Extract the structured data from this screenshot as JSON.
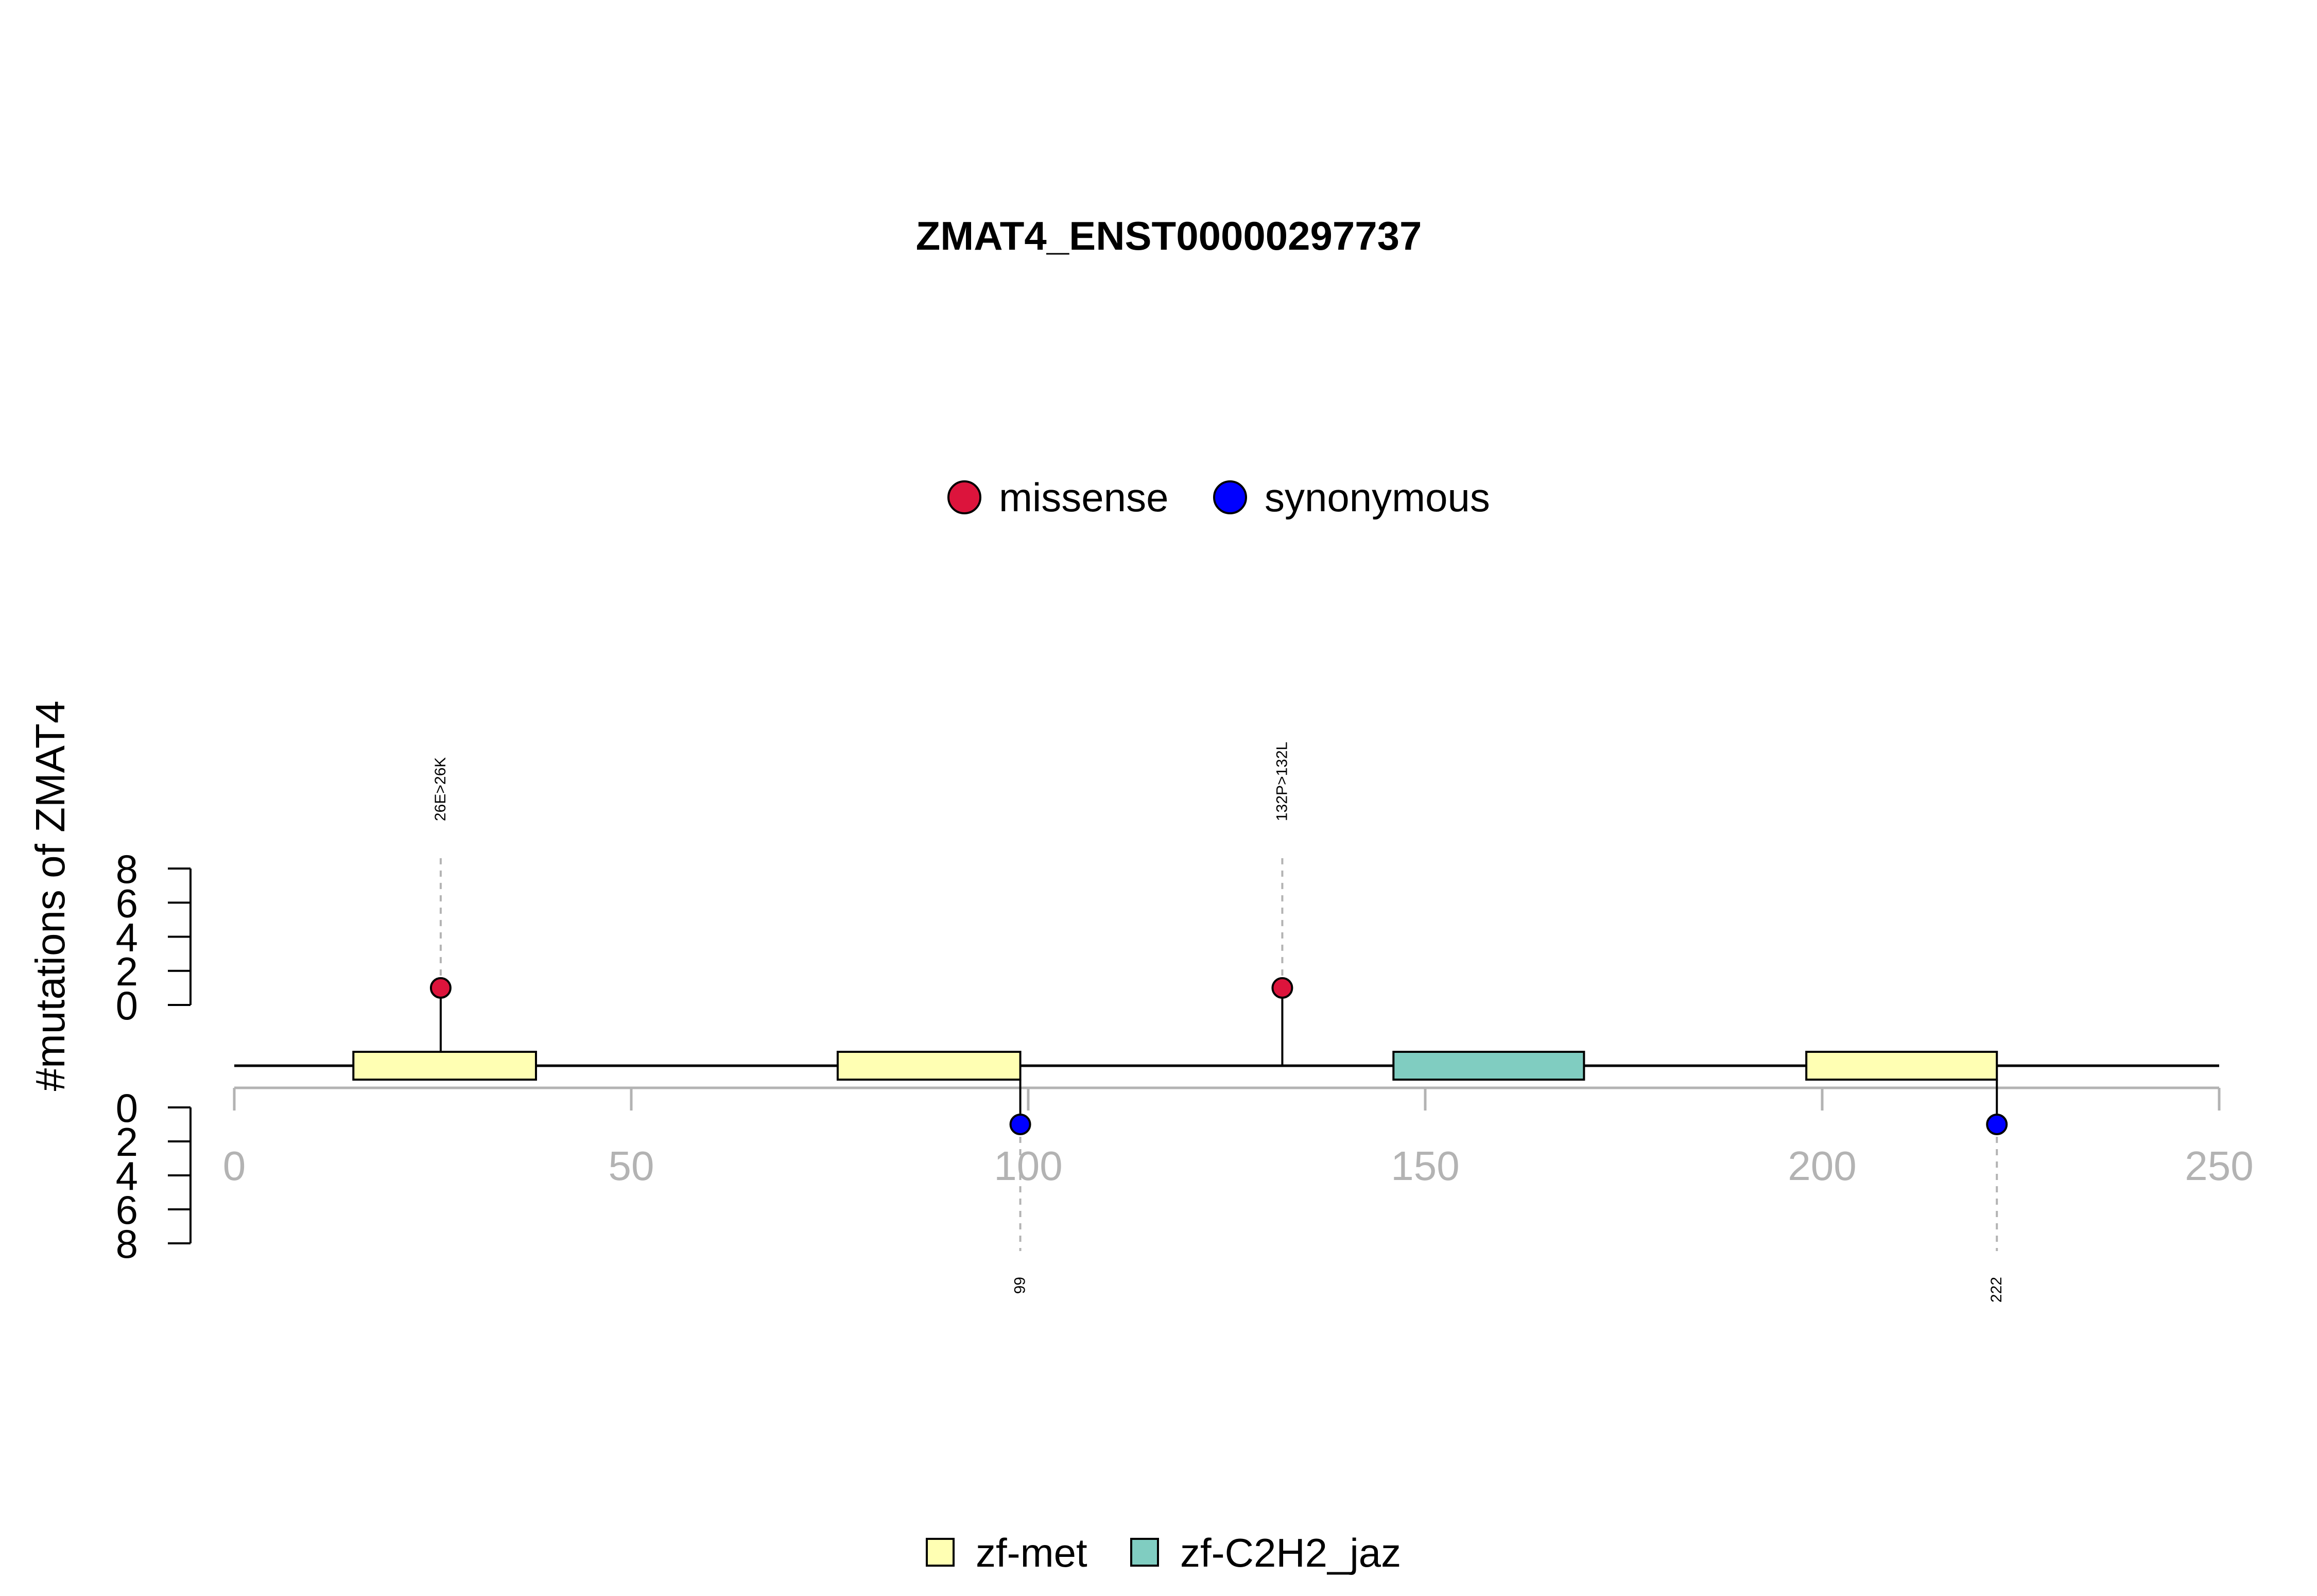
{
  "colors": {
    "missense": "#dc143c",
    "synonymous": "#0000ff",
    "zf_met": "#ffffb3",
    "zf_c2h2_jaz": "#80cdc1",
    "axis_tick_text": "#b3b3b3"
  },
  "chart_data": {
    "type": "lollipop",
    "title": "ZMAT4_ENST00000297737",
    "ylabel": "#mutations of ZMAT4",
    "xlim": [
      0,
      250
    ],
    "x_ticks": [
      "0",
      "50",
      "100",
      "150",
      "200",
      "250"
    ],
    "y_ticks_upper": [
      "8",
      "6",
      "4",
      "2",
      "0"
    ],
    "y_ticks_lower": [
      "0",
      "2",
      "4",
      "6",
      "8"
    ],
    "ylim": [
      0,
      8
    ],
    "protein_length": 250,
    "mutation_legend": [
      {
        "key": "missense",
        "label": "missense"
      },
      {
        "key": "synonymous",
        "label": "synonymous"
      }
    ],
    "domain_legend": [
      {
        "key": "zf_met",
        "label": "zf-met"
      },
      {
        "key": "zf_c2h2_jaz",
        "label": "zf-C2H2_jaz"
      }
    ],
    "domains": [
      {
        "name": "zf-met",
        "key": "zf_met",
        "start": 15,
        "end": 38
      },
      {
        "name": "zf-met",
        "key": "zf_met",
        "start": 76,
        "end": 99
      },
      {
        "name": "zf-C2H2_jaz",
        "key": "zf_c2h2_jaz",
        "start": 146,
        "end": 170
      },
      {
        "name": "zf-met",
        "key": "zf_met",
        "start": 198,
        "end": 222
      }
    ],
    "mutations": [
      {
        "position": 26,
        "count": 1,
        "type": "missense",
        "side": "top",
        "label": "26E>26K"
      },
      {
        "position": 132,
        "count": 1,
        "type": "missense",
        "side": "top",
        "label": "132P>132L"
      },
      {
        "position": 99,
        "count": 1,
        "type": "synonymous",
        "side": "bottom",
        "label": "99"
      },
      {
        "position": 222,
        "count": 1,
        "type": "synonymous",
        "side": "bottom",
        "label": "222"
      }
    ]
  }
}
